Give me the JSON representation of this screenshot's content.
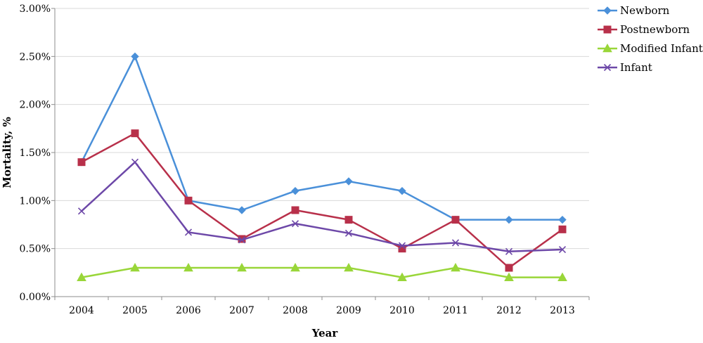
{
  "chart_data": {
    "type": "line",
    "title": "",
    "xlabel": "Year",
    "ylabel": "Mortality, %",
    "categories": [
      "2004",
      "2005",
      "2006",
      "2007",
      "2008",
      "2009",
      "2010",
      "2011",
      "2012",
      "2013"
    ],
    "ylim": [
      0,
      3.0
    ],
    "yticks": [
      0,
      0.5,
      1.0,
      1.5,
      2.0,
      2.5,
      3.0
    ],
    "ytick_labels": [
      "0.00%",
      "0.50%",
      "1.00%",
      "1.50%",
      "2.00%",
      "2.50%",
      "3.00%"
    ],
    "grid": "horizontal",
    "legend_position": "right",
    "series": [
      {
        "name": "Newborn",
        "color": "#4a90d9",
        "marker": "diamond",
        "values": [
          1.4,
          2.5,
          1.0,
          0.9,
          1.1,
          1.2,
          1.1,
          0.8,
          0.8,
          0.8
        ]
      },
      {
        "name": "Postnewborn",
        "color": "#b8304a",
        "marker": "square",
        "values": [
          1.4,
          1.7,
          1.0,
          0.6,
          0.9,
          0.8,
          0.5,
          0.8,
          0.3,
          0.7
        ]
      },
      {
        "name": "Modified Infant",
        "color": "#99d639",
        "marker": "triangle",
        "values": [
          0.2,
          0.3,
          0.3,
          0.3,
          0.3,
          0.3,
          0.2,
          0.3,
          0.2,
          0.2
        ]
      },
      {
        "name": "Infant",
        "color": "#6d48a8",
        "marker": "x",
        "values": [
          0.89,
          1.4,
          0.67,
          0.59,
          0.76,
          0.66,
          0.53,
          0.56,
          0.47,
          0.49
        ]
      }
    ]
  }
}
